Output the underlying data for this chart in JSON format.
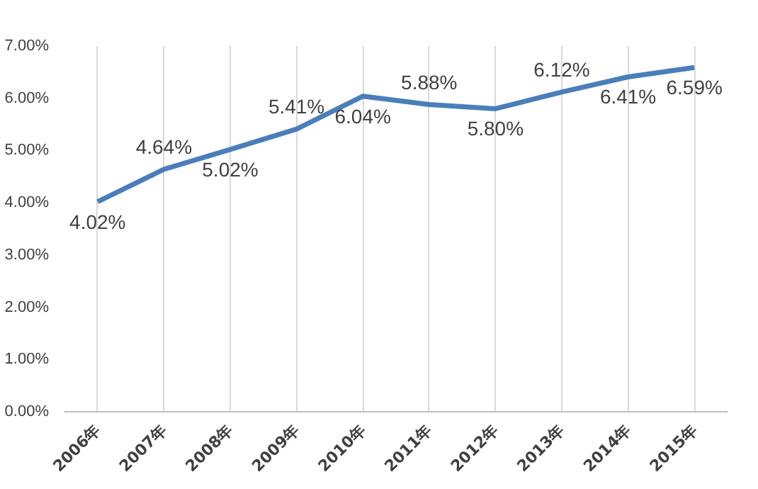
{
  "chart_data": {
    "type": "line",
    "categories": [
      "2006年",
      "2007年",
      "2008年",
      "2009年",
      "2010年",
      "2011年",
      "2012年",
      "2013年",
      "2014年",
      "2015年"
    ],
    "series": [
      {
        "color": "#4a7ebb",
        "values": [
          4.02,
          4.64,
          5.02,
          5.41,
          6.04,
          5.88,
          5.8,
          6.12,
          6.41,
          6.59
        ],
        "value_labels": [
          "4.02%",
          "4.64%",
          "5.02%",
          "5.41%",
          "6.04%",
          "5.88%",
          "5.80%",
          "6.12%",
          "6.41%",
          "6.59%"
        ]
      }
    ],
    "ylim": [
      0,
      7
    ],
    "yticks": [
      {
        "value": 0,
        "label": "0.00%"
      },
      {
        "value": 1,
        "label": "1.00%"
      },
      {
        "value": 2,
        "label": "2.00%"
      },
      {
        "value": 3,
        "label": "3.00%"
      },
      {
        "value": 4,
        "label": "4.00%"
      },
      {
        "value": 5,
        "label": "5.00%"
      },
      {
        "value": 6,
        "label": "6.00%"
      },
      {
        "value": 7,
        "label": "7.00%"
      }
    ],
    "grid": "x",
    "marker": "none",
    "line_style": "solid"
  }
}
